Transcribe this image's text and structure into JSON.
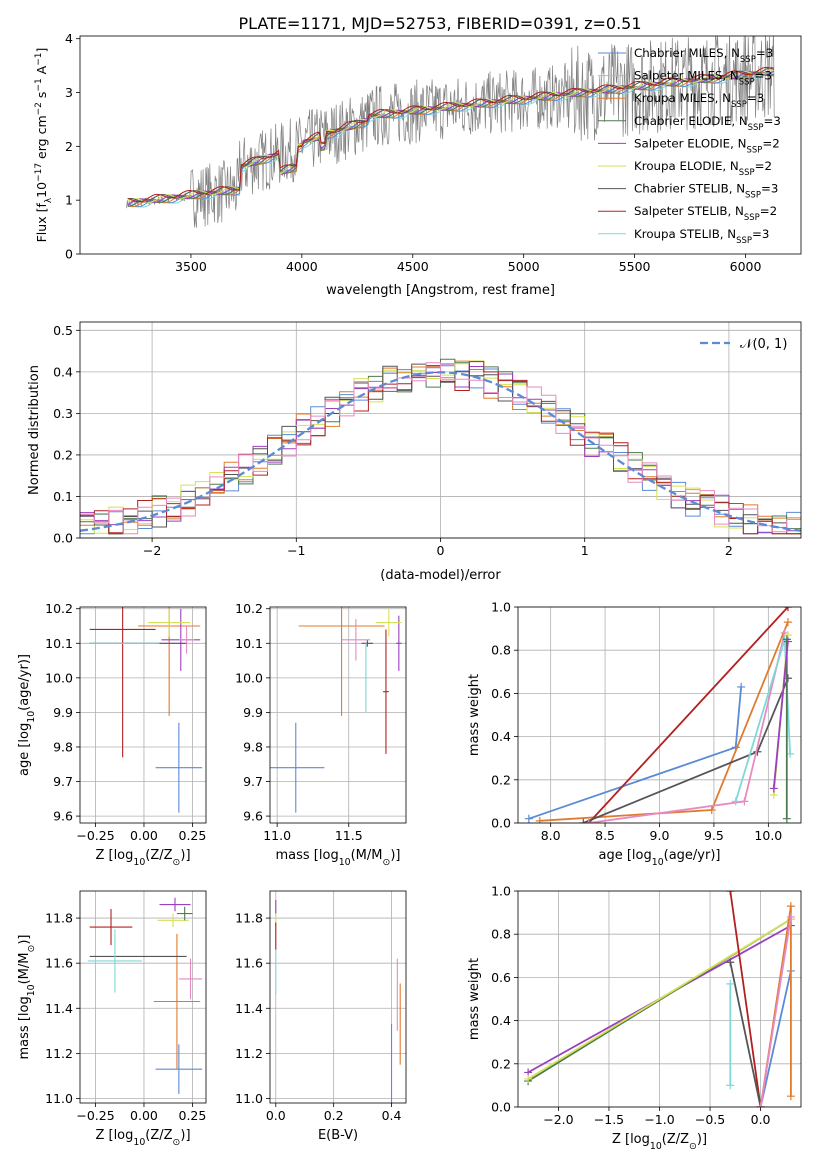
{
  "title": "PLATE=1171, MJD=52753, FIBERID=0391, z=0.51",
  "colors": {
    "chabrier_miles": "#5b8ad6",
    "salpeter_miles": "#b8b8b8",
    "kroupa_miles": "#e07b2e",
    "chabrier_elodie": "#4f7a4f",
    "salpeter_elodie": "#9a3fbf",
    "kroupa_elodie": "#d4e157",
    "chabrier_stelib": "#555555",
    "salpeter_stelib": "#b22020",
    "kroupa_stelib": "#7fd8d8",
    "pink": "#e78ac3",
    "data": "#808080",
    "gauss": "#5b8ad6"
  },
  "chart_data": [
    {
      "id": "spectrum",
      "type": "line",
      "xlabel": "wavelength [Angstrom, rest frame]",
      "ylabel": "Flux [f",
      "ylabel_sub": "λ",
      "ylabel_rest": "10",
      "ylabel_exp1": "−17",
      "ylabel_units": " erg cm",
      "ylabel_exp2": "−2",
      "ylabel_s": " s",
      "ylabel_exp3": "−1",
      "ylabel_A": " A",
      "ylabel_exp4": "−1",
      "ylabel_end": "]",
      "xlim": [
        3000,
        6250
      ],
      "ylim": [
        0,
        4.05
      ],
      "xticks": [
        "3500",
        "4000",
        "4500",
        "5000",
        "5500",
        "6000"
      ],
      "yticks": [
        "0",
        "1",
        "2",
        "3",
        "4"
      ],
      "legend_placement": "right",
      "legend": [
        {
          "name": "Chabrier MILES, N",
          "sub": "SSP",
          "tail": "=3",
          "color": "chabrier_miles"
        },
        {
          "name": "Salpeter MILES, N",
          "sub": "SSP",
          "tail": "=3",
          "color": "salpeter_miles"
        },
        {
          "name": "Kroupa MILES, N",
          "sub": "SSP",
          "tail": "=3",
          "color": "kroupa_miles"
        },
        {
          "name": "Chabrier ELODIE, N",
          "sub": "SSP",
          "tail": "=3",
          "color": "chabrier_elodie"
        },
        {
          "name": "Salpeter ELODIE, N",
          "sub": "SSP",
          "tail": "=2",
          "color": "salpeter_elodie"
        },
        {
          "name": "Kroupa ELODIE, N",
          "sub": "SSP",
          "tail": "=2",
          "color": "kroupa_elodie"
        },
        {
          "name": "Chabrier STELIB, N",
          "sub": "SSP",
          "tail": "=3",
          "color": "chabrier_stelib"
        },
        {
          "name": "Salpeter STELIB, N",
          "sub": "SSP",
          "tail": "=2",
          "color": "salpeter_stelib"
        },
        {
          "name": "Kroupa STELIB, N",
          "sub": "SSP",
          "tail": "=3",
          "color": "kroupa_stelib"
        }
      ]
    },
    {
      "id": "residuals",
      "type": "bar",
      "xlabel": "(data-model)/error",
      "ylabel": "Normed distribution",
      "xlim": [
        -2.5,
        2.5
      ],
      "ylim": [
        0,
        0.52
      ],
      "xticks": [
        "−2",
        "−1",
        "0",
        "1",
        "2"
      ],
      "yticks": [
        "0.0",
        "0.1",
        "0.2",
        "0.3",
        "0.4",
        "0.5"
      ],
      "grid": true,
      "legend_placement": "top-right",
      "gauss_label": "𝒩(0, 1)",
      "bin_width": 0.1
    },
    {
      "id": "age_vs_Z",
      "type": "scatter",
      "xlabel": "Z [log",
      "xlabel_sub": "10",
      "xlabel_rest": "(Z/Z",
      "xlabel_sub2": "⊙",
      "xlabel_end": ")]",
      "ylabel": "age  [log",
      "ylabel_sub": "10",
      "ylabel_rest": "(age/yr)]",
      "xlim": [
        -0.33,
        0.32
      ],
      "ylim": [
        9.58,
        10.205
      ],
      "xticks": [
        "−0.25",
        "0.00",
        "0.25"
      ],
      "yticks": [
        "9.6",
        "9.7",
        "9.8",
        "9.9",
        "10.0",
        "10.1",
        "10.2"
      ],
      "grid": true,
      "errorbars": [
        {
          "color": "chabrier_miles",
          "x": 0.18,
          "xerr": 0.12,
          "y": 9.74,
          "yerr": 0.13
        },
        {
          "color": "kroupa_miles",
          "x": 0.13,
          "xerr": 0.16,
          "y": 10.15,
          "yerr": 0.26
        },
        {
          "color": "salpeter_elodie",
          "x": 0.19,
          "xerr": 0.1,
          "y": 10.11,
          "yerr": 0.09
        },
        {
          "color": "kroupa_elodie",
          "x": 0.13,
          "xerr": 0.11,
          "y": 10.16,
          "yerr": 0.04
        },
        {
          "color": "chabrier_stelib",
          "x": -0.03,
          "xerr": 0.25,
          "y": 10.1,
          "yerr": 0.0
        },
        {
          "color": "salpeter_stelib",
          "x": -0.11,
          "xerr": 0.17,
          "y": 10.14,
          "yerr": 0.37
        },
        {
          "color": "kroupa_stelib",
          "x": -0.1,
          "xerr": 0.18,
          "y": 10.1,
          "yerr": 0.0
        },
        {
          "color": "pink",
          "x": 0.22,
          "xerr": 0.04,
          "y": 10.11,
          "yerr": 0.04
        }
      ]
    },
    {
      "id": "age_vs_mass",
      "type": "scatter",
      "xlabel": "mass [log",
      "xlabel_sub": "10",
      "xlabel_rest": "(M/M",
      "xlabel_sub2": "⊙",
      "xlabel_end": ")]",
      "xlim": [
        10.95,
        11.9
      ],
      "ylim": [
        9.58,
        10.205
      ],
      "xticks": [
        "11.0",
        "11.5"
      ],
      "yticks": [
        "9.6",
        "9.7",
        "9.8",
        "9.9",
        "10.0",
        "10.1",
        "10.2"
      ],
      "grid": true,
      "errorbars": [
        {
          "color": "chabrier_miles",
          "x": 11.13,
          "xerr": 0.2,
          "y": 9.74,
          "yerr": 0.13
        },
        {
          "color": "kroupa_miles",
          "x": 11.45,
          "xerr": 0.3,
          "y": 10.15,
          "yerr": 0.26
        },
        {
          "color": "salpeter_elodie",
          "x": 11.85,
          "xerr": 0.02,
          "y": 10.1,
          "yerr": 0.08
        },
        {
          "color": "kroupa_elodie",
          "x": 11.78,
          "xerr": 0.09,
          "y": 10.16,
          "yerr": 0.04
        },
        {
          "color": "chabrier_stelib",
          "x": 11.63,
          "xerr": 0.04,
          "y": 10.1,
          "yerr": 0.01
        },
        {
          "color": "salpeter_stelib",
          "x": 11.76,
          "xerr": 0.02,
          "y": 9.96,
          "yerr": 0.18
        },
        {
          "color": "kroupa_stelib",
          "x": 11.62,
          "xerr": 0.01,
          "y": 10.0,
          "yerr": 0.1
        },
        {
          "color": "pink",
          "x": 11.55,
          "xerr": 0.1,
          "y": 10.11,
          "yerr": 0.06
        }
      ]
    },
    {
      "id": "massweight_vs_age",
      "type": "line",
      "xlabel": "age  [log",
      "xlabel_sub": "10",
      "xlabel_rest": "(age/yr)]",
      "ylabel": "mass weight",
      "xlim": [
        7.7,
        10.3
      ],
      "ylim": [
        0,
        1.0
      ],
      "xticks": [
        "8.0",
        "8.5",
        "9.0",
        "9.5",
        "10.0"
      ],
      "yticks": [
        "0.0",
        "0.2",
        "0.4",
        "0.6",
        "0.8",
        "1.0"
      ],
      "grid": true,
      "series": [
        {
          "color": "chabrier_miles",
          "x": [
            7.8,
            9.7,
            9.75
          ],
          "y": [
            0.02,
            0.35,
            0.63
          ]
        },
        {
          "color": "kroupa_miles",
          "x": [
            7.9,
            9.48,
            10.18
          ],
          "y": [
            0.01,
            0.06,
            0.93
          ]
        },
        {
          "color": "salpeter_stelib",
          "x": [
            8.35,
            10.18
          ],
          "y": [
            0.0,
            1.0
          ]
        },
        {
          "color": "chabrier_stelib",
          "x": [
            8.3,
            9.9,
            10.18
          ],
          "y": [
            0.0,
            0.33,
            0.67
          ]
        },
        {
          "color": "pink",
          "x": [
            8.35,
            9.78,
            10.15
          ],
          "y": [
            0.0,
            0.1,
            0.88
          ]
        },
        {
          "color": "kroupa_stelib",
          "x": [
            9.7,
            10.15,
            10.2
          ],
          "y": [
            0.1,
            0.85,
            0.32
          ]
        },
        {
          "color": "kroupa_elodie",
          "x": [
            10.05,
            10.18
          ],
          "y": [
            0.13,
            0.87
          ]
        },
        {
          "color": "chabrier_elodie",
          "x": [
            10.17,
            10.17
          ],
          "y": [
            0.02,
            0.85
          ]
        },
        {
          "color": "salpeter_elodie",
          "x": [
            10.05,
            10.18
          ],
          "y": [
            0.16,
            0.84
          ]
        }
      ]
    },
    {
      "id": "mass_vs_Z",
      "type": "scatter",
      "xlabel": "Z [log",
      "xlabel_sub": "10",
      "xlabel_rest": "(Z/Z",
      "xlabel_sub2": "⊙",
      "xlabel_end": ")]",
      "ylabel": "mass [log",
      "ylabel_sub": "10",
      "ylabel_rest": "(M/M",
      "ylabel_sub2": "⊙",
      "ylabel_end": ")]",
      "xlim": [
        -0.33,
        0.32
      ],
      "ylim": [
        10.98,
        11.92
      ],
      "xticks": [
        "−0.25",
        "0.00",
        "0.25"
      ],
      "yticks": [
        "11.0",
        "11.2",
        "11.4",
        "11.6",
        "11.8"
      ],
      "grid": true,
      "errorbars": [
        {
          "color": "chabrier_miles",
          "x": 0.18,
          "xerr": 0.12,
          "y": 11.13,
          "yerr": 0.11
        },
        {
          "color": "kroupa_miles",
          "x": 0.17,
          "xerr": 0.12,
          "y": 11.43,
          "yerr": 0.3
        },
        {
          "color": "salpeter_elodie",
          "x": 0.16,
          "xerr": 0.08,
          "y": 11.86,
          "yerr": 0.03
        },
        {
          "color": "kroupa_elodie",
          "x": 0.15,
          "xerr": 0.08,
          "y": 11.79,
          "yerr": 0.03
        },
        {
          "color": "chabrier_stelib",
          "x": -0.03,
          "xerr": 0.25,
          "y": 11.63,
          "yerr": 0.0
        },
        {
          "color": "salpeter_stelib",
          "x": -0.17,
          "xerr": 0.11,
          "y": 11.76,
          "yerr": 0.08
        },
        {
          "color": "kroupa_stelib",
          "x": -0.15,
          "xerr": 0.14,
          "y": 11.61,
          "yerr": 0.14
        },
        {
          "color": "chabrier_elodie",
          "x": 0.21,
          "xerr": 0.04,
          "y": 11.82,
          "yerr": 0.03
        },
        {
          "color": "pink",
          "x": 0.24,
          "xerr": 0.06,
          "y": 11.53,
          "yerr": 0.09
        }
      ]
    },
    {
      "id": "mass_vs_ebv",
      "type": "scatter",
      "xlabel": "E(B-V)",
      "xlim": [
        -0.02,
        0.45
      ],
      "ylim": [
        10.98,
        11.92
      ],
      "xticks": [
        "0.0",
        "0.2",
        "0.4"
      ],
      "yticks": [
        "11.0",
        "11.2",
        "11.4",
        "11.6",
        "11.8"
      ],
      "grid": true,
      "errorbars": [
        {
          "color": "chabrier_miles",
          "x": 0.4,
          "xerr": 0.0,
          "y": 11.15,
          "yerr": 0.18
        },
        {
          "color": "kroupa_miles",
          "x": 0.43,
          "xerr": 0.0,
          "y": 11.33,
          "yerr": 0.18
        },
        {
          "color": "pink",
          "x": 0.42,
          "xerr": 0.0,
          "y": 11.46,
          "yerr": 0.16
        },
        {
          "color": "salpeter_elodie",
          "x": 0.0,
          "xerr": 0.0,
          "y": 11.85,
          "yerr": 0.03
        },
        {
          "color": "kroupa_elodie",
          "x": 0.0,
          "xerr": 0.0,
          "y": 11.79,
          "yerr": 0.03
        },
        {
          "color": "salpeter_stelib",
          "x": 0.0,
          "xerr": 0.0,
          "y": 11.72,
          "yerr": 0.06
        },
        {
          "color": "kroupa_stelib",
          "x": 0.0,
          "xerr": 0.0,
          "y": 11.56,
          "yerr": 0.1
        }
      ]
    },
    {
      "id": "massweight_vs_Z",
      "type": "line",
      "xlabel": "Z [log",
      "xlabel_sub": "10",
      "xlabel_rest": "(Z/Z",
      "xlabel_sub2": "⊙",
      "xlabel_end": ")]",
      "ylabel": "mass weight",
      "xlim": [
        -2.4,
        0.4
      ],
      "ylim": [
        0,
        1.0
      ],
      "xticks": [
        "−2.0",
        "−1.5",
        "−1.0",
        "−0.5",
        "0.0"
      ],
      "yticks": [
        "0.0",
        "0.2",
        "0.4",
        "0.6",
        "0.8",
        "1.0"
      ],
      "grid": true,
      "series": [
        {
          "color": "salpeter_elodie",
          "x": [
            -2.3,
            0.3
          ],
          "y": [
            0.16,
            0.84
          ]
        },
        {
          "color": "chabrier_elodie",
          "x": [
            -2.3,
            0.3
          ],
          "y": [
            0.12,
            0.87
          ]
        },
        {
          "color": "kroupa_elodie",
          "x": [
            -2.3,
            0.3
          ],
          "y": [
            0.13,
            0.87
          ]
        },
        {
          "color": "salpeter_stelib",
          "x": [
            -0.3,
            0.0
          ],
          "y": [
            1.0,
            0.0
          ]
        },
        {
          "color": "chabrier_stelib",
          "x": [
            -0.3,
            0.0
          ],
          "y": [
            0.67,
            0.0
          ]
        },
        {
          "color": "kroupa_stelib",
          "x": [
            -0.3,
            -0.3
          ],
          "y": [
            0.1,
            0.57
          ]
        },
        {
          "color": "chabrier_miles",
          "x": [
            0.0,
            0.3
          ],
          "y": [
            0.0,
            0.63
          ]
        },
        {
          "color": "kroupa_miles",
          "x": [
            0.0,
            0.3,
            0.3
          ],
          "y": [
            0.0,
            0.93,
            0.05
          ]
        },
        {
          "color": "pink",
          "x": [
            0.0,
            0.3
          ],
          "y": [
            0.0,
            0.88
          ]
        }
      ]
    }
  ]
}
